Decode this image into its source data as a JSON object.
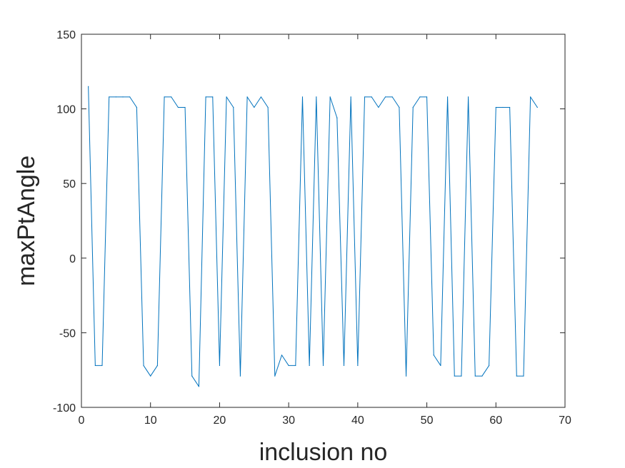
{
  "chart_data": {
    "type": "line",
    "title": "",
    "xlabel": "inclusion no",
    "ylabel": "maxPtAngle",
    "xlim": [
      0,
      70
    ],
    "ylim": [
      -100,
      150
    ],
    "xticks": [
      0,
      10,
      20,
      30,
      40,
      50,
      60,
      70
    ],
    "yticks": [
      -100,
      -50,
      0,
      50,
      100,
      150
    ],
    "xtick_labels": [
      "0",
      "10",
      "20",
      "30",
      "40",
      "50",
      "60",
      "70"
    ],
    "ytick_labels": [
      "-100",
      "-50",
      "0",
      "50",
      "100",
      "150"
    ],
    "grid": false,
    "box": true,
    "series": [
      {
        "color": "#0072bd",
        "x": [
          1,
          2,
          3,
          4,
          5,
          6,
          7,
          8,
          9,
          10,
          11,
          12,
          13,
          14,
          15,
          16,
          17,
          18,
          19,
          20,
          21,
          22,
          23,
          24,
          25,
          26,
          27,
          28,
          29,
          30,
          31,
          32,
          33,
          34,
          35,
          36,
          37,
          38,
          39,
          40,
          41,
          42,
          43,
          44,
          45,
          46,
          47,
          48,
          49,
          50,
          51,
          52,
          53,
          54,
          55,
          56,
          57,
          58,
          59,
          60,
          61,
          62,
          63,
          64,
          65,
          66
        ],
        "values": [
          115,
          -72,
          -72,
          108,
          108,
          108,
          108,
          101,
          -72,
          -79,
          -72,
          108,
          108,
          101,
          101,
          -79,
          -86,
          108,
          108,
          -72,
          108,
          101,
          -79,
          108,
          101,
          108,
          101,
          -79,
          -65,
          -72,
          -72,
          108,
          -72,
          108,
          -72,
          108,
          94,
          -72,
          108,
          -72,
          108,
          108,
          101,
          108,
          108,
          101,
          -79,
          101,
          108,
          108,
          -65,
          -72,
          108,
          -79,
          -79,
          108,
          -79,
          -79,
          -72,
          101,
          101,
          101,
          -79,
          -79,
          108,
          101
        ]
      }
    ]
  }
}
